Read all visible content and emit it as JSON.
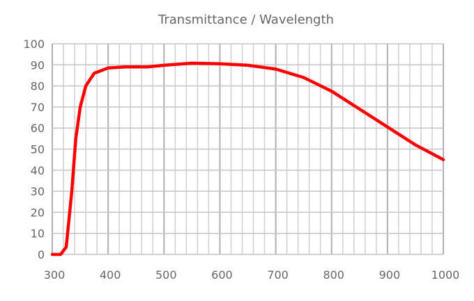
{
  "chart_data": {
    "type": "line",
    "title": "Transmittance / Wavelength",
    "xlabel": "",
    "ylabel": "",
    "xlim": [
      300,
      1000
    ],
    "ylim": [
      0,
      100
    ],
    "x_ticks": [
      300,
      400,
      500,
      600,
      700,
      800,
      900,
      1000
    ],
    "y_ticks": [
      0,
      10,
      20,
      30,
      40,
      50,
      60,
      70,
      80,
      90,
      100
    ],
    "x_minor_step": 20,
    "grid": true,
    "series": [
      {
        "name": "Transmittance",
        "color": "#ff0000",
        "x": [
          300,
          315,
          325,
          335,
          342,
          350,
          360,
          375,
          400,
          430,
          470,
          500,
          550,
          600,
          650,
          700,
          750,
          800,
          850,
          900,
          950,
          1000
        ],
        "y": [
          0,
          0,
          3.5,
          30,
          55,
          70,
          80,
          86,
          88.5,
          89,
          89,
          89.8,
          90.8,
          90.5,
          89.8,
          88,
          84,
          77.5,
          69,
          60.5,
          52,
          45
        ]
      }
    ]
  }
}
